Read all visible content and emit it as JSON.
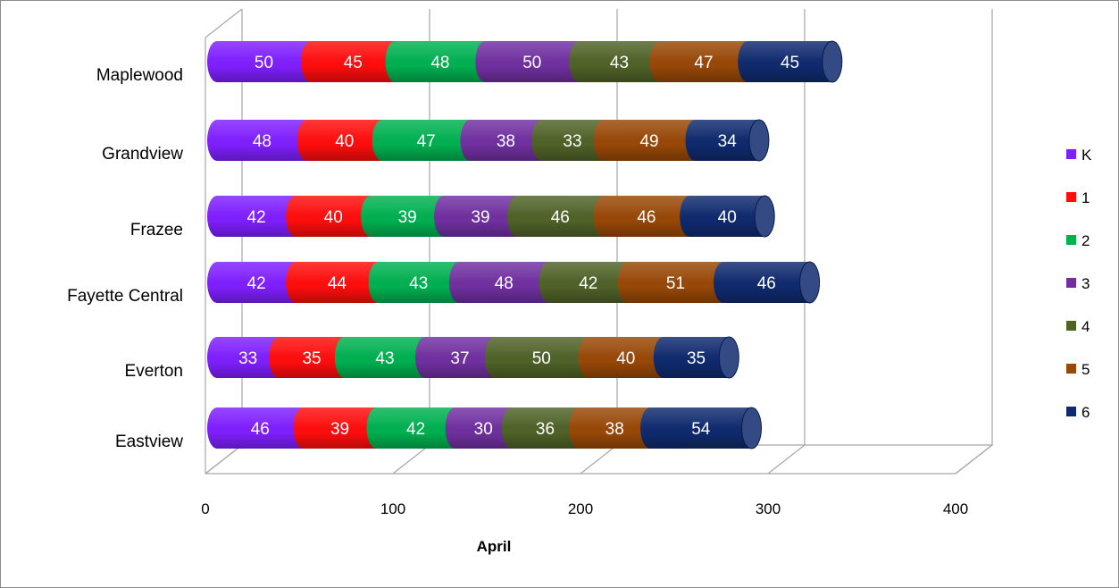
{
  "chart_data": {
    "type": "bar",
    "orientation": "horizontal",
    "stacked": true,
    "style": "3d-cylinder",
    "title": "",
    "xlabel": "April",
    "ylabel": "",
    "xlim": [
      0,
      400
    ],
    "x_ticks": [
      "0",
      "100",
      "200",
      "300",
      "400"
    ],
    "grid": true,
    "legend_position": "right",
    "categories": [
      "Maplewood",
      "Grandview",
      "Frazee",
      "Fayette Central",
      "Everton",
      "Eastview"
    ],
    "series": [
      {
        "name": "K",
        "color": "#7f1fff",
        "values": [
          50,
          48,
          42,
          42,
          33,
          46
        ]
      },
      {
        "name": "1",
        "color": "#ff0d0d",
        "values": [
          45,
          40,
          40,
          44,
          35,
          39
        ]
      },
      {
        "name": "2",
        "color": "#00b050",
        "values": [
          48,
          47,
          39,
          43,
          43,
          42
        ]
      },
      {
        "name": "3",
        "color": "#7030a0",
        "values": [
          50,
          38,
          39,
          48,
          37,
          30
        ]
      },
      {
        "name": "4",
        "color": "#4f6228",
        "values": [
          43,
          33,
          46,
          42,
          50,
          36
        ]
      },
      {
        "name": "5",
        "color": "#984807",
        "values": [
          47,
          49,
          46,
          51,
          40,
          38
        ]
      },
      {
        "name": "6",
        "color": "#0f2a6e",
        "values": [
          45,
          34,
          40,
          46,
          35,
          54
        ]
      }
    ]
  }
}
